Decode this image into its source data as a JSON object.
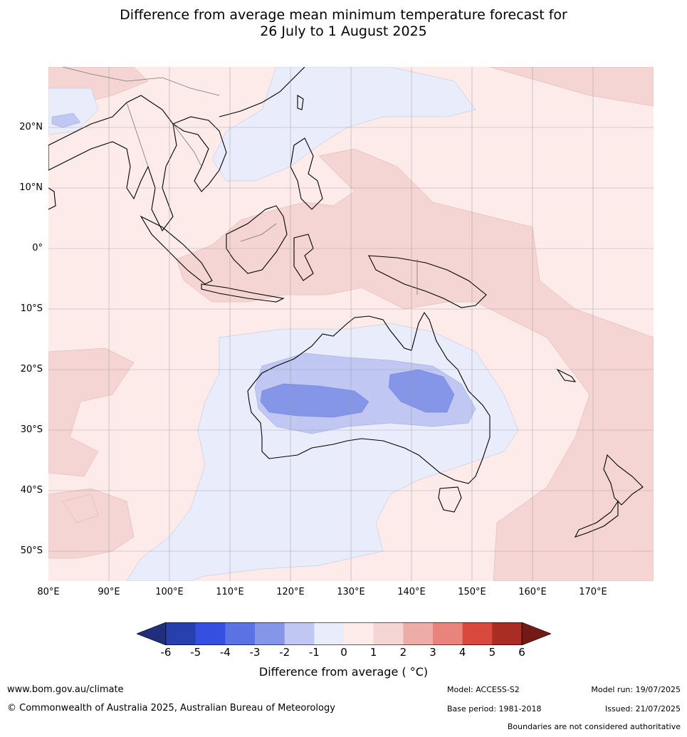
{
  "title": {
    "line1": "Difference from average mean minimum temperature forecast for",
    "line2": "26 July to 1 August 2025"
  },
  "map": {
    "lat_labels": [
      "20°N",
      "10°N",
      "0°",
      "10°S",
      "20°S",
      "30°S",
      "40°S",
      "50°S"
    ],
    "lon_labels": [
      "80°E",
      "90°E",
      "100°E",
      "110°E",
      "120°E",
      "130°E",
      "140°E",
      "150°E",
      "160°E",
      "170°E"
    ],
    "colors": {
      "ocean_base": "#fcebe9",
      "warm_1_2": "#f5d5d3",
      "cool_0_1": "#e9ecfb",
      "cool_1_2": "#c0c8f2",
      "cool_2_3": "#8596e8",
      "coast": "#000000",
      "border": "#777777",
      "grid": "#999999"
    }
  },
  "colorbar": {
    "ticks": [
      "-6",
      "-5",
      "-4",
      "-3",
      "-2",
      "-1",
      "0",
      "1",
      "2",
      "3",
      "4",
      "5",
      "6"
    ],
    "colors": [
      "#1f2f7c",
      "#283fae",
      "#3550e0",
      "#5a72e4",
      "#8596e8",
      "#c0c8f2",
      "#e9ecfb",
      "#fcebe9",
      "#f5d5d3",
      "#edaca6",
      "#e8847b",
      "#d9483c",
      "#a92d22",
      "#741a16"
    ],
    "label": "Difference from average ( °C)"
  },
  "footer": {
    "website": "www.bom.gov.au/climate",
    "copyright": "© Commonwealth of Australia 2025, Australian Bureau of Meteorology",
    "model": "Model: ACCESS-S2",
    "base_period": "Base period: 1981-2018",
    "model_run": "Model run: 19/07/2025",
    "issued": "Issued: 21/07/2025",
    "disclaimer": "Boundaries are not considered authoritative"
  }
}
